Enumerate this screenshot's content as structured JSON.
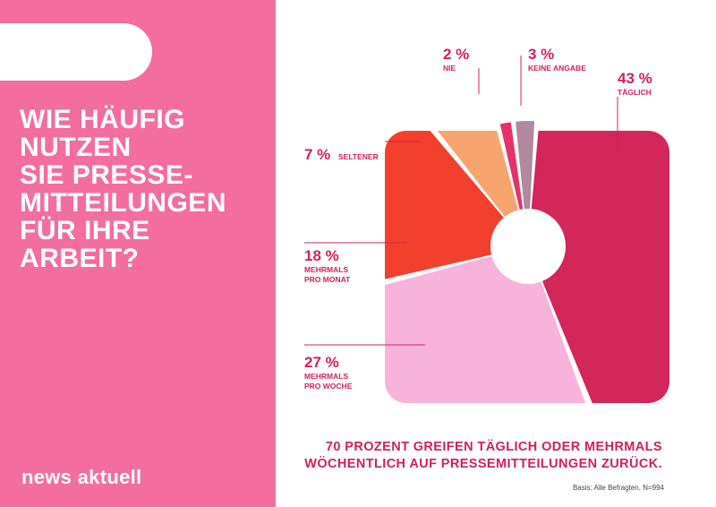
{
  "headline": [
    "WIE HÄUFIG",
    "NUTZEN",
    "SIE PRESSE-",
    "MITTEILUNGEN",
    "FÜR IHRE",
    "ARBEIT?"
  ],
  "brand": "news aktuell",
  "summary": [
    "70 PROZENT GREIFEN TÄGLICH ODER MEHRMALS",
    "WÖCHENTLICH AUF PRESSEMITTEILUNGEN ZURÜCK."
  ],
  "basis": "Basis: Alle Befragten, N=994",
  "colors": {
    "panel": "#f36d9f",
    "accent": "#d01f5b",
    "white": "#ffffff"
  },
  "chart_data": {
    "type": "pie",
    "unit": "%",
    "slices": [
      {
        "label": "TÄGLICH",
        "value": 43,
        "display": "43 %",
        "color": "#d3265b"
      },
      {
        "label": "MEHRMALS PRO WOCHE",
        "value": 27,
        "display": "27 %",
        "color": "#f7b3dc"
      },
      {
        "label": "MEHRMALS PRO MONAT",
        "value": 18,
        "display": "18 %",
        "color": "#f2402c"
      },
      {
        "label": "SELTENER",
        "value": 7,
        "display": "7 %",
        "color": "#f7a46f"
      },
      {
        "label": "NIE",
        "value": 2,
        "display": "2 %",
        "color": "#e8306d"
      },
      {
        "label": "KEINE ANGABE",
        "value": 3,
        "display": "3 %",
        "color": "#b0899e"
      }
    ]
  }
}
